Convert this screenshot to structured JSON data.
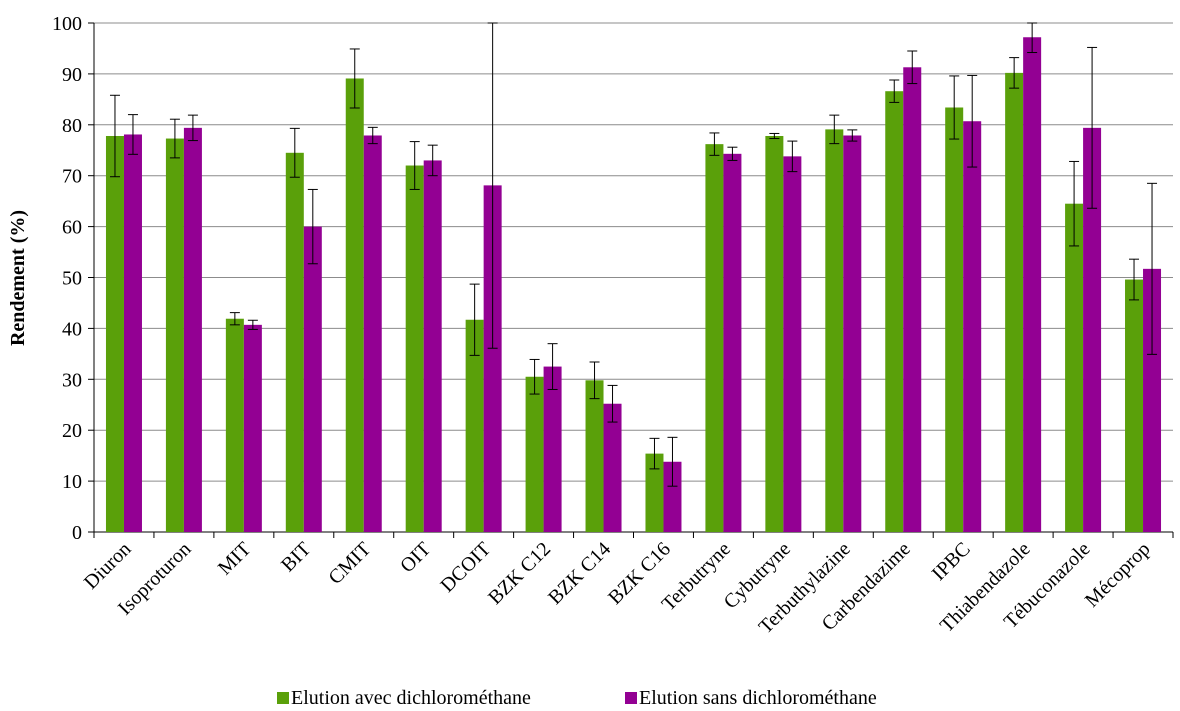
{
  "chart_data": {
    "type": "bar",
    "ylabel": "Rendement (%)",
    "ylim": [
      0,
      100
    ],
    "yticks": [
      0,
      10,
      20,
      30,
      40,
      50,
      60,
      70,
      80,
      90,
      100
    ],
    "grid": true,
    "legend_position": "bottom",
    "categories": [
      "Diuron",
      "Isoproturon",
      "MIT",
      "BIT",
      "CMIT",
      "OIT",
      "DCOIT",
      "BZK C12",
      "BZK C14",
      "BZK C16",
      "Terbutryne",
      "Cybutryne",
      "Terbuthylazine",
      "Carbendazime",
      "IPBC",
      "Thiabendazole",
      "Tébuconazole",
      "Mécoprop"
    ],
    "series": [
      {
        "name": "Elution avec dichlorométhane",
        "color": "#5aa00a",
        "values": [
          77.8,
          77.3,
          41.9,
          74.5,
          89.1,
          72.0,
          41.7,
          30.5,
          29.8,
          15.4,
          76.2,
          77.8,
          79.1,
          86.6,
          83.4,
          90.2,
          64.5,
          49.6
        ],
        "errors": [
          8.0,
          3.8,
          1.2,
          4.8,
          5.8,
          4.7,
          7.0,
          3.4,
          3.6,
          3.0,
          2.2,
          0.5,
          2.8,
          2.2,
          6.2,
          3.0,
          8.3,
          4.0
        ]
      },
      {
        "name": "Elution sans dichlorométhane",
        "color": "#930093",
        "values": [
          78.1,
          79.4,
          40.7,
          60.0,
          77.9,
          73.0,
          68.1,
          32.5,
          25.2,
          13.8,
          74.3,
          73.8,
          77.9,
          91.3,
          80.7,
          97.2,
          79.4,
          51.7
        ],
        "errors": [
          3.9,
          2.5,
          0.9,
          7.3,
          1.6,
          3.0,
          32.0,
          4.5,
          3.6,
          4.8,
          1.3,
          3.0,
          1.1,
          3.2,
          9.0,
          3.0,
          15.8,
          16.8
        ]
      }
    ]
  }
}
